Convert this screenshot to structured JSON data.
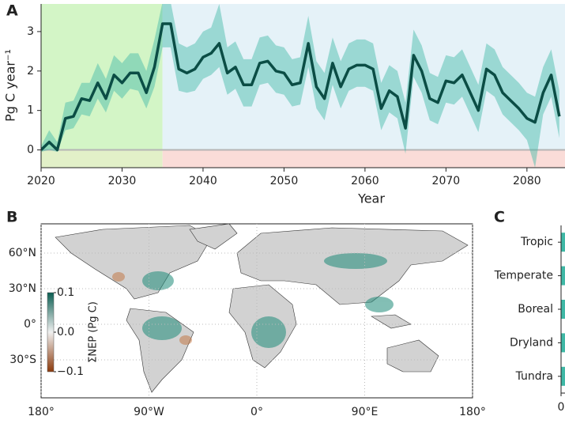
{
  "chart_data": [
    {
      "type": "line",
      "label": "A",
      "xlabel": "Year",
      "ylabel": "Pg C year⁻¹",
      "x": [
        2020,
        2021,
        2022,
        2023,
        2024,
        2025,
        2026,
        2027,
        2028,
        2029,
        2030,
        2031,
        2032,
        2033,
        2034,
        2035,
        2036,
        2037,
        2038,
        2039,
        2040,
        2041,
        2042,
        2043,
        2044,
        2045,
        2046,
        2047,
        2048,
        2049,
        2050,
        2051,
        2052,
        2053,
        2054,
        2055,
        2056,
        2057,
        2058,
        2059,
        2060,
        2061,
        2062,
        2063,
        2064,
        2065,
        2066,
        2067,
        2068,
        2069,
        2070,
        2071,
        2072,
        2073,
        2074,
        2075,
        2076,
        2077,
        2078,
        2079,
        2080,
        2081,
        2082,
        2083,
        2084
      ],
      "series": [
        {
          "color": "#0b4d45",
          "values": [
            0,
            0.2,
            0,
            0.8,
            0.85,
            1.3,
            1.25,
            1.7,
            1.3,
            1.9,
            1.7,
            1.95,
            1.95,
            1.45,
            2.1,
            3.2,
            3.2,
            2.05,
            1.95,
            2.05,
            2.35,
            2.45,
            2.7,
            1.95,
            2.1,
            1.65,
            1.65,
            2.2,
            2.25,
            2.0,
            1.95,
            1.65,
            1.7,
            2.7,
            1.6,
            1.3,
            2.2,
            1.6,
            2.05,
            2.15,
            2.15,
            2.05,
            1.05,
            1.5,
            1.35,
            0.55,
            2.4,
            2.0,
            1.3,
            1.2,
            1.75,
            1.7,
            1.9,
            1.45,
            1.0,
            2.05,
            1.9,
            1.45,
            1.25,
            1.05,
            0.8,
            0.7,
            1.45,
            1.9,
            0.85
          ]
        }
      ],
      "band": {
        "color": "#3fb8a6",
        "lower": [
          -0.05,
          0,
          -0.05,
          0.5,
          0.55,
          0.9,
          0.85,
          1.3,
          0.95,
          1.5,
          1.3,
          1.55,
          1.5,
          1.05,
          1.6,
          2.6,
          2.6,
          1.5,
          1.45,
          1.5,
          1.8,
          1.9,
          2.1,
          1.4,
          1.55,
          1.1,
          1.1,
          1.65,
          1.7,
          1.45,
          1.4,
          1.1,
          1.15,
          2.1,
          1.05,
          0.75,
          1.65,
          1.05,
          1.5,
          1.6,
          1.6,
          1.5,
          0.5,
          0.95,
          0.8,
          -0.1,
          1.85,
          1.45,
          0.75,
          0.65,
          1.2,
          1.15,
          1.35,
          0.9,
          0.45,
          1.5,
          1.35,
          0.9,
          0.7,
          0.5,
          0.25,
          -0.45,
          0.9,
          1.35,
          0.3
        ],
        "upper": [
          0.1,
          0.5,
          0.2,
          1.2,
          1.25,
          1.7,
          1.7,
          2.2,
          1.8,
          2.4,
          2.2,
          2.45,
          2.45,
          2.0,
          2.8,
          3.75,
          3.75,
          2.7,
          2.6,
          2.7,
          3.0,
          3.1,
          3.7,
          2.6,
          2.75,
          2.3,
          2.3,
          2.85,
          2.9,
          2.65,
          2.6,
          2.3,
          2.35,
          3.4,
          2.25,
          1.95,
          2.85,
          2.25,
          2.7,
          2.8,
          2.8,
          2.7,
          1.7,
          2.15,
          2.0,
          1.2,
          3.05,
          2.65,
          1.95,
          1.85,
          2.4,
          2.35,
          2.55,
          2.1,
          1.65,
          2.7,
          2.55,
          2.1,
          1.9,
          1.7,
          1.45,
          1.35,
          2.1,
          2.55,
          1.5
        ]
      },
      "periods": [
        {
          "xlim": [
            2020,
            2035
          ],
          "color": "#d3f5c6",
          "below_color": "#e2f0c8"
        },
        {
          "xlim": [
            2035,
            2084.7
          ],
          "color": "#e5f2f8",
          "below_color": "#fadcd8"
        }
      ],
      "xlim": [
        2020,
        2084.7
      ],
      "ylim": [
        -0.45,
        3.7
      ],
      "xticks": [
        2020,
        2030,
        2040,
        2050,
        2060,
        2070,
        2080
      ],
      "yticks": [
        0,
        1,
        2,
        3
      ]
    },
    {
      "type": "map",
      "label": "B",
      "xlim": [
        -180,
        180
      ],
      "ylim": [
        -62,
        84.7
      ],
      "xticks": [
        {
          "value": -180,
          "label": "180°"
        },
        {
          "value": -90,
          "label": "90°W"
        },
        {
          "value": 0,
          "label": "0°"
        },
        {
          "value": 90,
          "label": "90°E"
        },
        {
          "value": 180,
          "label": "180°"
        }
      ],
      "yticks": [
        {
          "value": 60,
          "label": "60°N"
        },
        {
          "value": 30,
          "label": "30°N"
        },
        {
          "value": 0,
          "label": "0°"
        },
        {
          "value": -30,
          "label": "30°S"
        }
      ],
      "colorbar": {
        "label": "ΣNEP (Pg C)",
        "lim": [
          -0.1,
          0.1
        ],
        "colors": [
          "#8c3a0c",
          "#f0f0f0",
          "#0b5e52"
        ],
        "ticks": [
          0.1,
          {
            "value": 0.0,
            "label": "0.0"
          },
          {
            "value": -0.1,
            "label": "−0.1"
          }
        ]
      }
    },
    {
      "type": "bar",
      "label": "C",
      "orientation": "horizontal",
      "categories": [
        "Tropic",
        "Temperate",
        "Boreal",
        "Dryland",
        "Tundra"
      ],
      "xticks": [
        0
      ]
    }
  ]
}
